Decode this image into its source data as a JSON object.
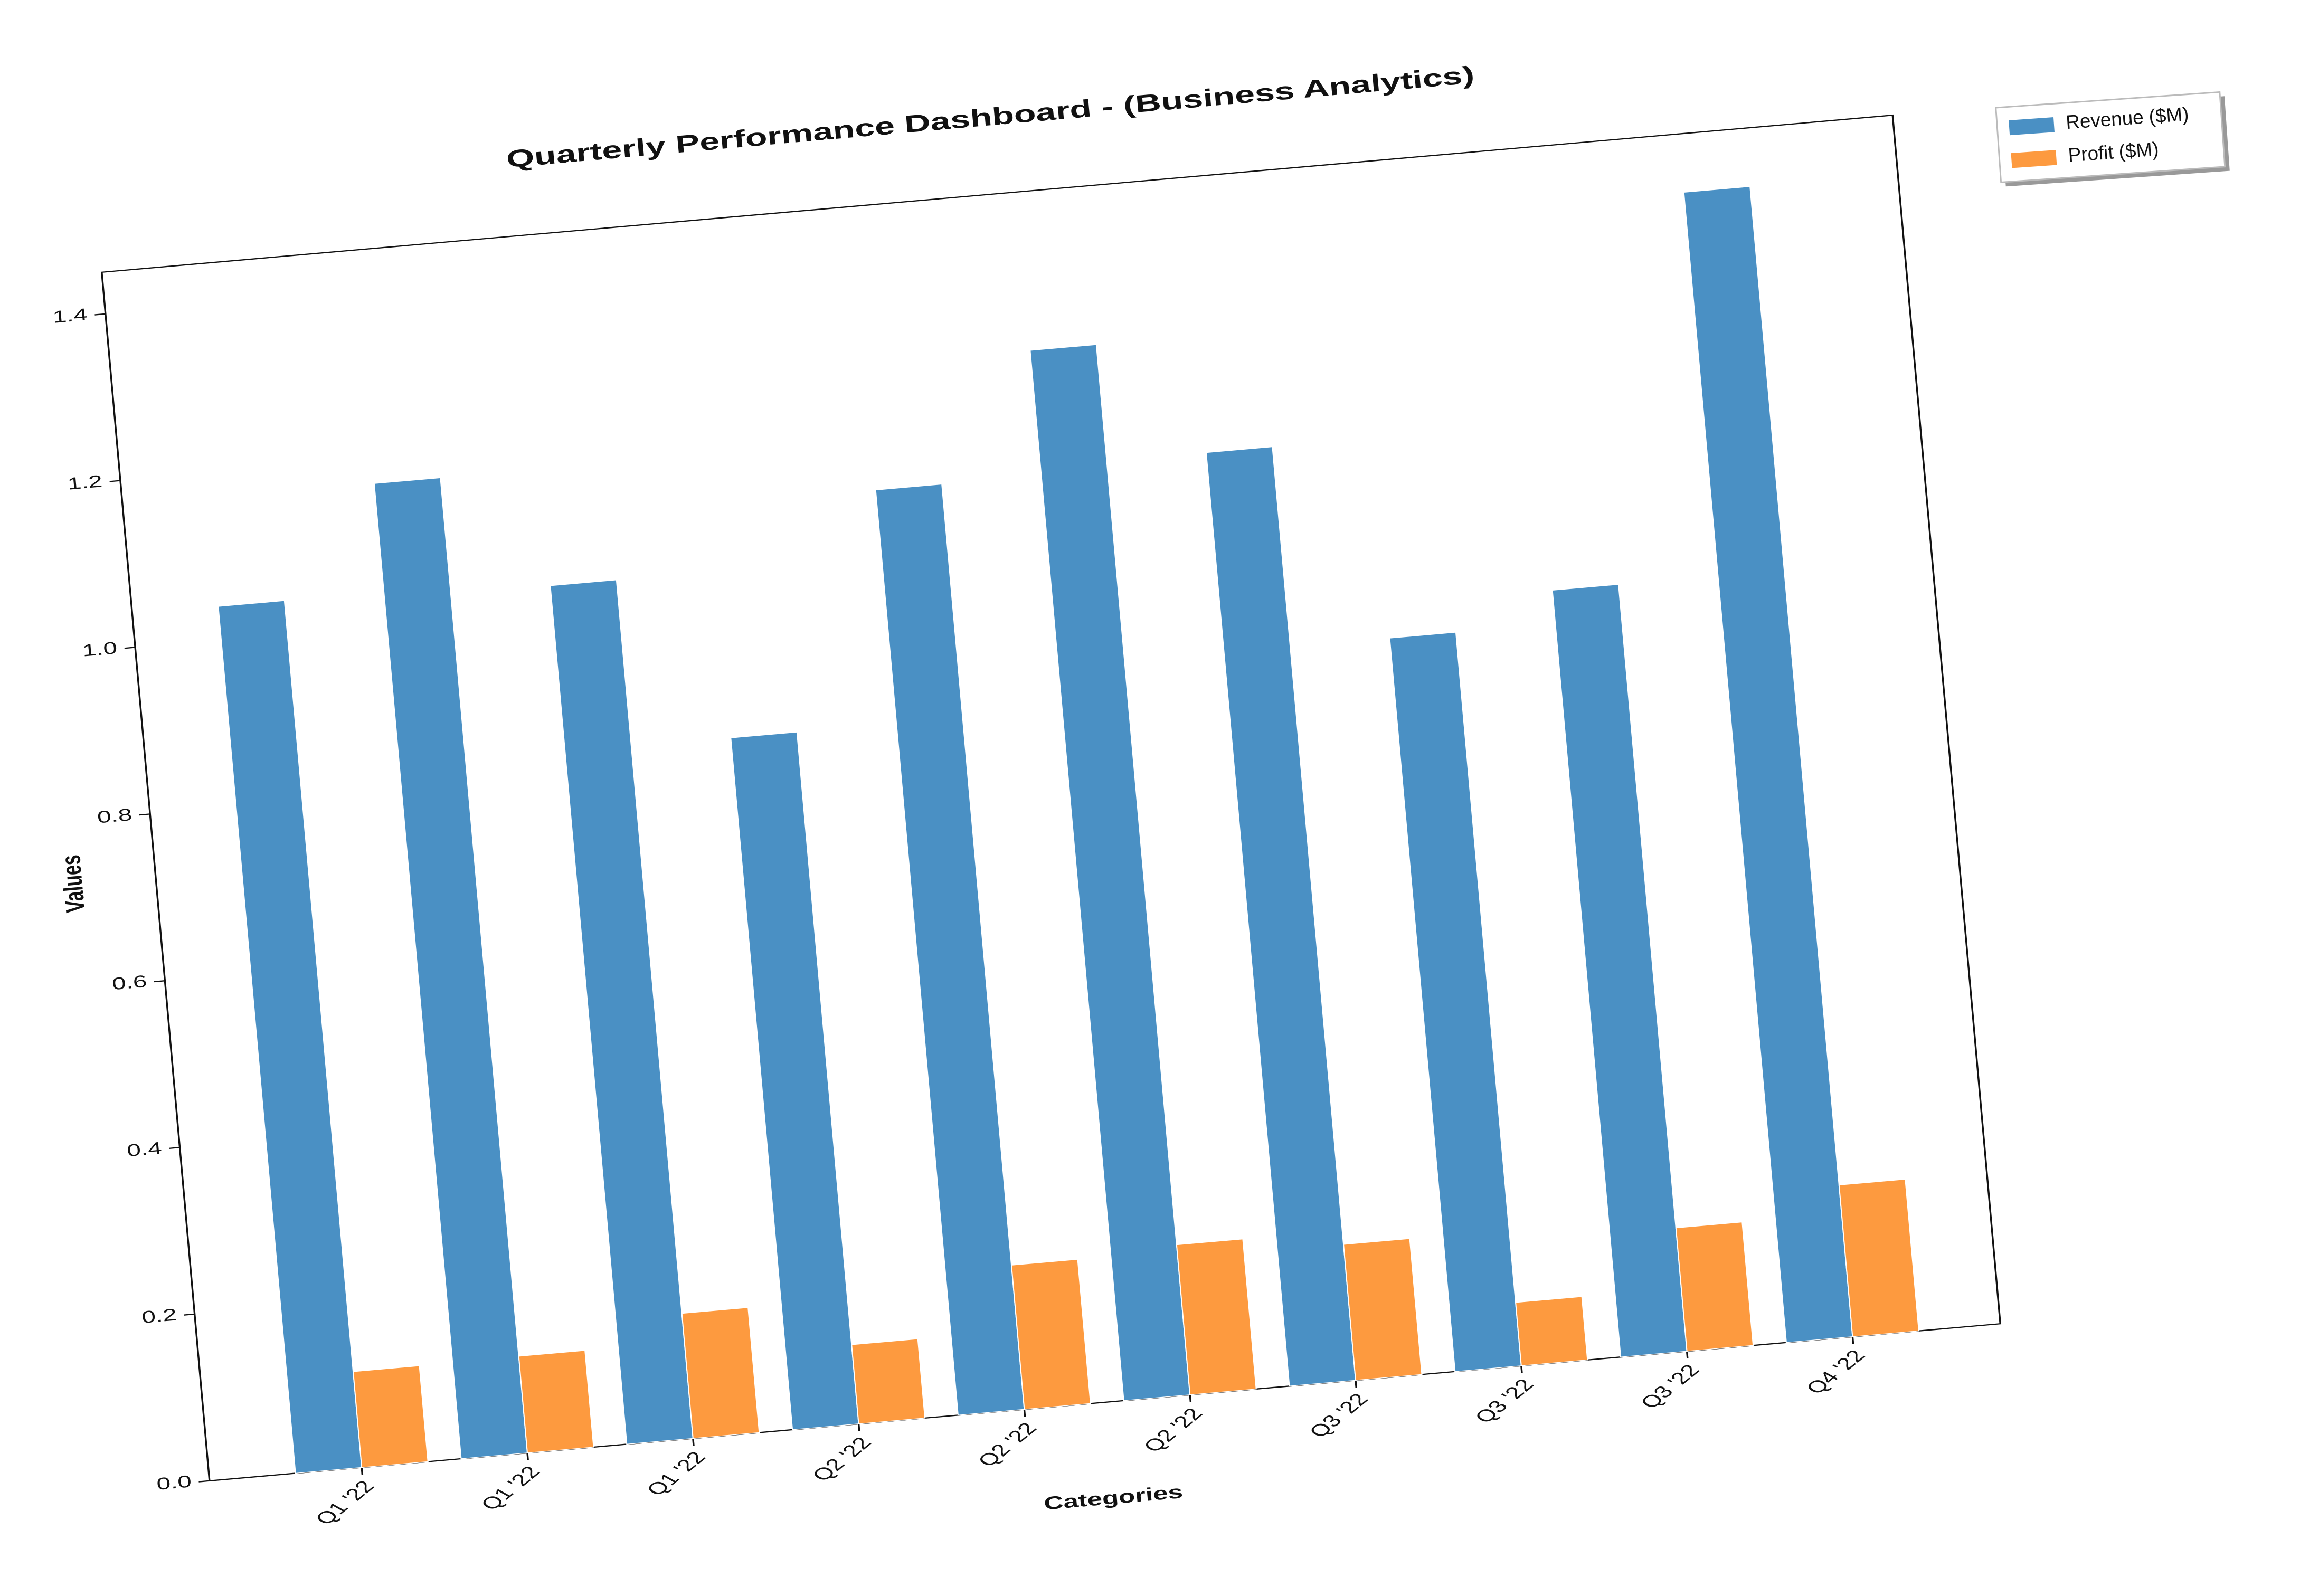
{
  "chart_data": {
    "type": "bar",
    "title": "Quarterly Performance Dashboard - (Business Analytics)",
    "x_label": "Categories",
    "y_label": "Values",
    "categories": [
      "Q1 '22",
      "Q1 '22",
      "Q1 '22",
      "Q2 '22",
      "Q2 '22",
      "Q2 '22",
      "Q3 '22",
      "Q3 '22",
      "Q3 '22",
      "Q4 '22"
    ],
    "series": [
      {
        "name": "Revenue ($M)",
        "color": "#4a90c4",
        "values": [
          1.04,
          1.17,
          1.03,
          0.83,
          1.11,
          1.26,
          1.12,
          0.88,
          0.92,
          1.38
        ]
      },
      {
        "name": "Profit ($M)",
        "color": "#fd9a3f",
        "values": [
          0.115,
          0.116,
          0.15,
          0.095,
          0.173,
          0.18,
          0.163,
          0.076,
          0.148,
          0.182
        ]
      }
    ],
    "ylim": [
      0,
      1.45
    ],
    "yticks": [
      {
        "value": 0,
        "label": "0.0"
      },
      0.2,
      0.4,
      0.6,
      0.8,
      {
        "value": 1,
        "label": "1.0"
      },
      1.2,
      1.4
    ],
    "legend_position": "upper right"
  }
}
